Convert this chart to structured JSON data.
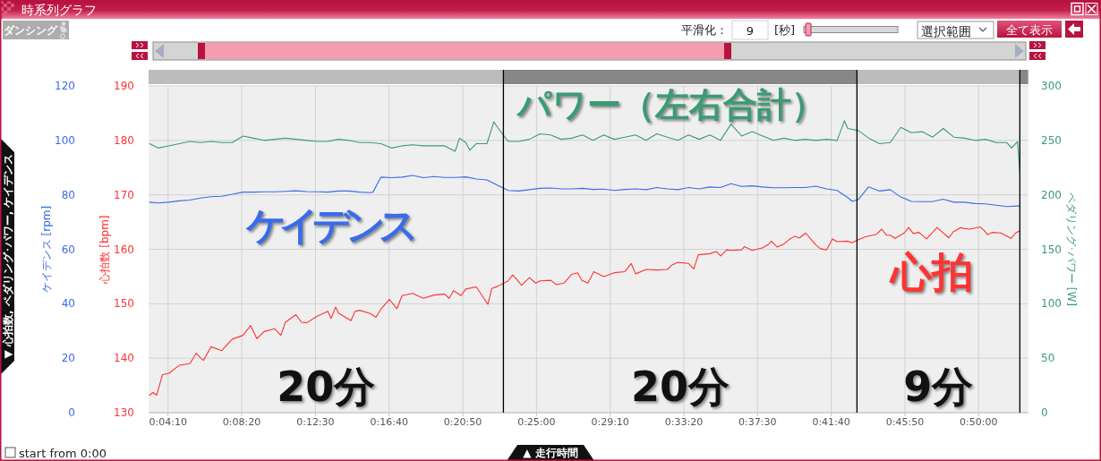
{
  "chart_data": {
    "type": "line",
    "title": "時系列グラフ",
    "xlabel": "▲ 走行時間",
    "ylabel": "心拍数 [bpm]",
    "y2label": "ペダリング･パワー [W]",
    "y3label": "ケイデンス [rpm]",
    "annotations": [
      "ダンシング",
      "平滑化：",
      "9",
      "[秒]",
      "選択範囲",
      "全て表示",
      "▼ 心拍数, ペダリング･パワー, ケイデンス",
      "start from 0:00",
      "20分",
      "20分",
      "9分"
    ],
    "xlim": [
      0.0511,
      0.8801
    ],
    "xticks": [
      {
        "value": 0.069444,
        "label": "0:04:10"
      },
      {
        "value": 0.138889,
        "label": "0:08:20"
      },
      {
        "value": 0.208333,
        "label": "0:12:30"
      },
      {
        "value": 0.277778,
        "label": "0:16:40"
      },
      {
        "value": 0.347222,
        "label": "0:20:50"
      },
      {
        "value": 0.416667,
        "label": "0:25:00"
      },
      {
        "value": 0.486111,
        "label": "0:29:10"
      },
      {
        "value": 0.555556,
        "label": "0:33:20"
      },
      {
        "value": 0.625,
        "label": "0:37:30"
      },
      {
        "value": 0.694444,
        "label": "0:41:40"
      },
      {
        "value": 0.763889,
        "label": "0:45:50"
      },
      {
        "value": 0.833333,
        "label": "0:50:00"
      }
    ],
    "ylim": [
      130,
      190
    ],
    "yticks": [
      130,
      140,
      150,
      160,
      170,
      180,
      190
    ],
    "y2lim": [
      0,
      300
    ],
    "y2ticks": [
      0,
      50,
      100,
      150,
      200,
      250,
      300
    ],
    "y3lim": [
      0,
      120
    ],
    "y3ticks": [
      0,
      20,
      40,
      60,
      80,
      100,
      120
    ],
    "grid": true,
    "ref_lines": [
      {
        "axis": "x",
        "value": 0.3855,
        "color": "#000000"
      },
      {
        "axis": "x",
        "value": 0.7187,
        "color": "#000000"
      },
      {
        "axis": "x",
        "value": 0.8722,
        "color": "#000000"
      }
    ],
    "series": [
      {
        "name": "心拍",
        "color": "#ff3333",
        "x": [
          0.052,
          0.0553,
          0.0587,
          0.0642,
          0.07,
          0.08,
          0.09,
          0.0959,
          0.1,
          0.1029,
          0.11,
          0.12,
          0.13,
          0.14,
          0.1473,
          0.1531,
          0.16,
          0.17,
          0.1758,
          0.18,
          0.19,
          0.1952,
          0.2,
          0.21,
          0.22,
          0.2231,
          0.2274,
          0.23,
          0.2418,
          0.2456,
          0.25,
          0.26,
          0.2654,
          0.27,
          0.2781,
          0.2851,
          0.29,
          0.3,
          0.31,
          0.32,
          0.33,
          0.3343,
          0.3385,
          0.3456,
          0.35,
          0.36,
          0.3709,
          0.3745,
          0.38,
          0.39,
          0.3942,
          0.3975,
          0.4026,
          0.41,
          0.4159,
          0.42,
          0.43,
          0.4357,
          0.4426,
          0.45,
          0.4553,
          0.4595,
          0.4651,
          0.4707,
          0.48,
          0.4848,
          0.49,
          0.5,
          0.5059,
          0.5101,
          0.52,
          0.53,
          0.54,
          0.5442,
          0.55,
          0.56,
          0.5649,
          0.5692,
          0.58,
          0.5861,
          0.5903,
          0.5958,
          0.6,
          0.61,
          0.6127,
          0.62,
          0.63,
          0.6352,
          0.6381,
          0.6436,
          0.65,
          0.6548,
          0.66,
          0.6647,
          0.6704,
          0.6746,
          0.68,
          0.6844,
          0.6901,
          0.6956,
          0.7,
          0.7097,
          0.7141,
          0.7182,
          0.7266,
          0.7366,
          0.7421,
          0.7464,
          0.75,
          0.7547,
          0.7632,
          0.7674,
          0.7717,
          0.7773,
          0.7843,
          0.7899,
          0.7941,
          0.8053,
          0.8095,
          0.8166,
          0.82,
          0.8249,
          0.835,
          0.8389,
          0.8417,
          0.846,
          0.8544,
          0.864,
          0.8682,
          0.8722
        ],
        "values": [
          133.2,
          133.7,
          133.2,
          137.0,
          137.2,
          138.7,
          139.0,
          140.9,
          140.1,
          139.6,
          142.1,
          141.4,
          143.5,
          144.2,
          146.0,
          143.6,
          144.9,
          145.4,
          144.2,
          146.6,
          148.0,
          146.6,
          146.5,
          147.7,
          148.6,
          147.3,
          149.4,
          148.3,
          146.9,
          148.6,
          148.8,
          148.2,
          147.5,
          149.0,
          150.8,
          149.1,
          151.5,
          151.9,
          151.0,
          151.6,
          151.8,
          151.0,
          152.4,
          151.5,
          152.7,
          153.1,
          149.9,
          152.8,
          153.2,
          154.2,
          155.3,
          154.6,
          153.4,
          154.8,
          153.8,
          154.2,
          154.3,
          153.5,
          153.8,
          155.4,
          155.7,
          154.3,
          153.8,
          155.9,
          155.0,
          155.3,
          155.7,
          155.9,
          157.4,
          155.5,
          156.3,
          156.2,
          156.3,
          157.1,
          157.6,
          157.4,
          156.4,
          159.0,
          159.2,
          159.6,
          158.8,
          159.9,
          159.8,
          159.9,
          160.5,
          159.8,
          160.3,
          160.9,
          161.5,
          160.4,
          161.0,
          161.8,
          162.4,
          162.1,
          163.0,
          162.0,
          160.8,
          160.1,
          159.9,
          161.9,
          161.4,
          161.5,
          161.2,
          161.6,
          162.3,
          162.7,
          163.7,
          162.6,
          162.6,
          162.0,
          163.0,
          164.0,
          162.9,
          163.1,
          161.9,
          163.1,
          164.0,
          162.1,
          163.2,
          164.0,
          163.8,
          163.7,
          164.1,
          163.4,
          162.7,
          163.1,
          163.0,
          162.0,
          163.0,
          163.4
        ]
      },
      {
        "name": "ケイデンス",
        "color": "#3a6bea",
        "axis": "y3",
        "x": [
          0.052,
          0.06,
          0.07,
          0.08,
          0.09,
          0.1,
          0.11,
          0.12,
          0.13,
          0.14,
          0.15,
          0.16,
          0.17,
          0.18,
          0.19,
          0.2,
          0.21,
          0.22,
          0.23,
          0.24,
          0.25,
          0.26,
          0.2626,
          0.27,
          0.28,
          0.29,
          0.3,
          0.31,
          0.32,
          0.33,
          0.34,
          0.35,
          0.36,
          0.37,
          0.38,
          0.39,
          0.4,
          0.41,
          0.42,
          0.43,
          0.44,
          0.45,
          0.46,
          0.47,
          0.48,
          0.49,
          0.5,
          0.51,
          0.52,
          0.53,
          0.54,
          0.55,
          0.56,
          0.57,
          0.58,
          0.59,
          0.6,
          0.61,
          0.62,
          0.63,
          0.64,
          0.65,
          0.66,
          0.67,
          0.68,
          0.69,
          0.7,
          0.71,
          0.7143,
          0.72,
          0.7296,
          0.74,
          0.75,
          0.76,
          0.77,
          0.78,
          0.79,
          0.8,
          0.81,
          0.82,
          0.83,
          0.84,
          0.85,
          0.86,
          0.87,
          0.8722
        ],
        "values": [
          77.3,
          77.0,
          77.3,
          77.8,
          78.1,
          78.8,
          79.3,
          79.5,
          80.2,
          81.0,
          81.0,
          81.1,
          81.1,
          81.3,
          81.5,
          81.2,
          81.1,
          81.0,
          81.4,
          81.4,
          81.0,
          80.8,
          81.0,
          86.5,
          86.3,
          86.5,
          87.1,
          86.3,
          86.7,
          86.4,
          86.4,
          86.6,
          85.8,
          85.5,
          83.5,
          81.6,
          81.4,
          81.9,
          82.4,
          82.5,
          82.2,
          82.2,
          82.4,
          82.0,
          82.1,
          81.6,
          82.0,
          82.2,
          81.9,
          82.7,
          82.2,
          81.9,
          82.7,
          82.2,
          82.9,
          82.7,
          84.1,
          83.1,
          83.3,
          82.9,
          82.6,
          82.6,
          82.7,
          82.7,
          83.2,
          82.2,
          81.6,
          79.0,
          77.6,
          78.3,
          82.9,
          81.4,
          81.9,
          79.2,
          77.6,
          77.5,
          77.5,
          78.4,
          77.3,
          77.3,
          76.8,
          76.7,
          76.2,
          75.7,
          75.9,
          75.9
        ]
      },
      {
        "name": "パワー（左右合計）",
        "color": "#3a9b74",
        "axis": "y2",
        "x": [
          0.052,
          0.06,
          0.07,
          0.08,
          0.09,
          0.1,
          0.11,
          0.12,
          0.13,
          0.14,
          0.15,
          0.16,
          0.17,
          0.18,
          0.19,
          0.2,
          0.21,
          0.22,
          0.23,
          0.24,
          0.25,
          0.26,
          0.27,
          0.28,
          0.29,
          0.3,
          0.31,
          0.32,
          0.33,
          0.34,
          0.3442,
          0.35,
          0.3538,
          0.36,
          0.37,
          0.3765,
          0.38,
          0.39,
          0.4,
          0.41,
          0.42,
          0.43,
          0.44,
          0.45,
          0.46,
          0.47,
          0.48,
          0.49,
          0.5,
          0.51,
          0.52,
          0.53,
          0.54,
          0.55,
          0.56,
          0.57,
          0.58,
          0.59,
          0.6,
          0.61,
          0.62,
          0.63,
          0.64,
          0.65,
          0.66,
          0.67,
          0.68,
          0.69,
          0.7,
          0.7069,
          0.71,
          0.72,
          0.73,
          0.74,
          0.75,
          0.76,
          0.77,
          0.78,
          0.79,
          0.8,
          0.81,
          0.82,
          0.83,
          0.84,
          0.85,
          0.86,
          0.8644,
          0.87,
          0.8722
        ],
        "values": [
          247,
          243,
          245,
          247,
          249,
          248,
          249,
          248,
          248,
          254,
          252,
          250,
          251,
          252,
          251,
          250,
          249,
          249,
          251,
          250,
          248,
          248,
          247,
          243,
          245,
          246,
          245,
          245,
          245,
          240,
          252,
          248,
          241,
          247,
          247,
          267,
          262,
          249,
          249,
          251,
          256,
          255,
          251,
          252,
          255,
          250,
          255,
          251,
          253,
          255,
          250,
          256,
          253,
          250,
          255,
          251,
          255,
          250,
          265,
          254,
          258,
          254,
          250,
          252,
          250,
          251,
          250,
          251,
          250,
          268,
          261,
          259,
          252,
          247,
          248,
          262,
          257,
          258,
          253,
          261,
          253,
          252,
          250,
          251,
          248,
          248,
          243,
          249,
          221
        ]
      }
    ]
  }
}
